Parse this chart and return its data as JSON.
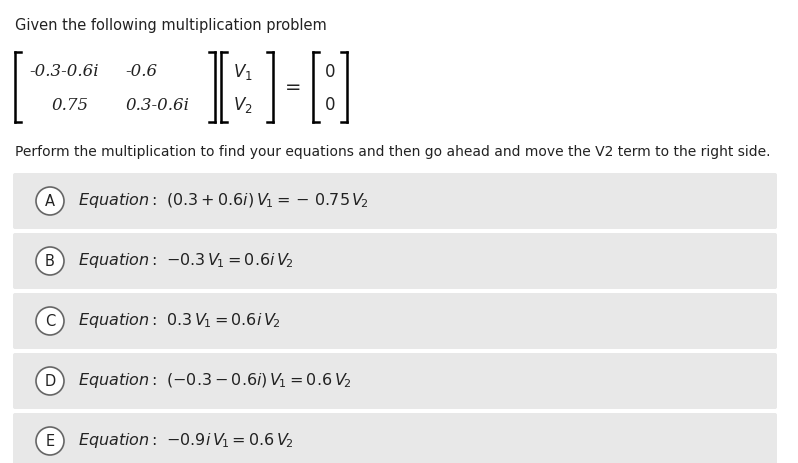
{
  "title": "Given the following multiplication problem",
  "subtitle": "Perform the multiplication to find your equations and then go ahead and move the V2 term to the right side.",
  "matrix_row1_col1": "-0.3-0.6i",
  "matrix_row1_col2": "-0.6",
  "matrix_row2_col1": "0.75",
  "matrix_row2_col2": "0.3-0.6i",
  "options": [
    {
      "label": "A"
    },
    {
      "label": "B"
    },
    {
      "label": "C"
    },
    {
      "label": "D"
    },
    {
      "label": "E"
    }
  ],
  "bg_color": "#ffffff",
  "option_bg_color": "#e8e8e8",
  "text_color": "#222222",
  "font_size_title": 10.5,
  "font_size_matrix": 12,
  "font_size_option": 11.5
}
